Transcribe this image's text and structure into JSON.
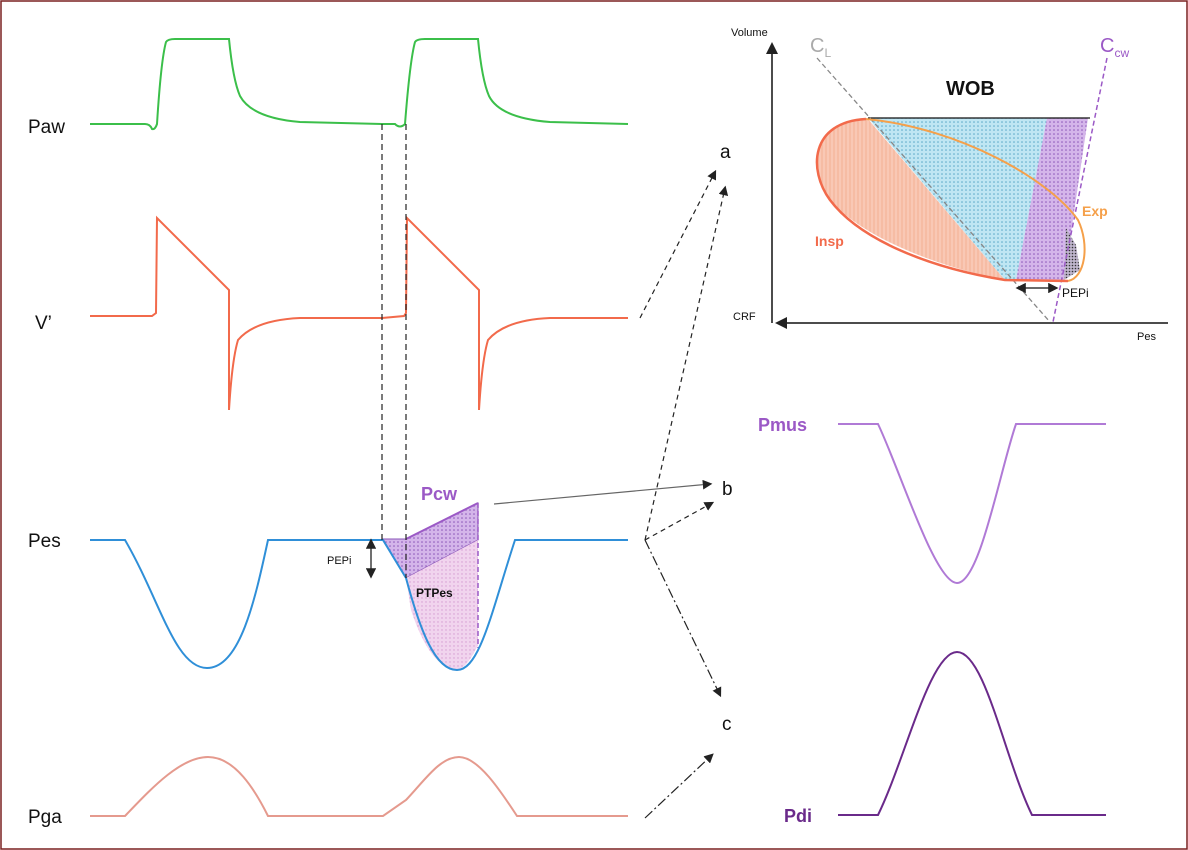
{
  "signals": {
    "paw": "Paw",
    "v_prime": "V’",
    "pes": "Pes",
    "pga": "Pga"
  },
  "annotations": {
    "pcw": "Pcw",
    "pepi": "PEPi",
    "ptpes": "PTPes",
    "marker_a": "a",
    "marker_b": "b",
    "marker_c": "c"
  },
  "loop_panel": {
    "y_axis": "Volume",
    "x_axis": "Pes",
    "origin": "CRF",
    "title": "WOB",
    "cl_main": "C",
    "cl_sub": "L",
    "ccw_main": "C",
    "ccw_sub": "cw",
    "insp": "Insp",
    "exp": "Exp",
    "pepi": "PEPi"
  },
  "right_traces": {
    "pmus": "Pmus",
    "pdi": "Pdi"
  },
  "colors": {
    "paw": "#3bbf4a",
    "flow": "#f26a4b",
    "pes": "#2f8fd8",
    "pga": "#e59a8e",
    "purple": "#9b59c6",
    "dark_purple": "#6a2a8a",
    "exp": "#f5a04a",
    "grey": "#aaaaaa"
  }
}
